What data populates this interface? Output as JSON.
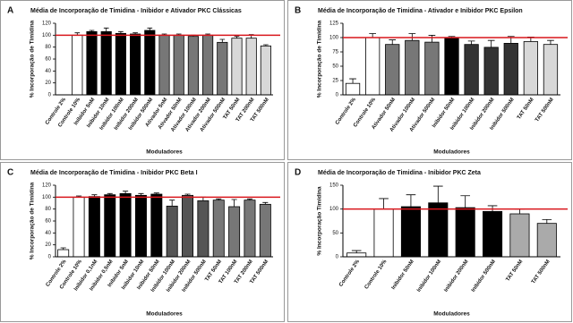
{
  "chart_data": [
    {
      "type": "bar",
      "label": "A",
      "title": "Média de Incorporação de Timidina - Inibidor e Ativador PKC Clássicas",
      "y_label": "% Incorporação de Timidina",
      "x_label": "Moduladores",
      "categories": [
        "Controle 2%",
        "Controle 10%",
        "Inibidor 5nM",
        "Inibidor 10nM",
        "Inibidor 100nM",
        "Inibidor 200nM",
        "Inibidor 500nM",
        "Ativador 5nM",
        "Ativador 50nM",
        "Ativador 100nM",
        "Ativador 200nM",
        "Ativador 500nM",
        "TAT 50nM",
        "TAT 200nM",
        "TAT 500nM"
      ],
      "values": [
        0,
        100,
        106,
        106,
        103,
        102,
        108,
        100,
        100,
        98,
        100,
        88,
        95,
        95,
        82
      ],
      "errors": [
        0,
        4,
        2,
        6,
        3,
        2,
        4,
        2,
        2,
        2,
        2,
        5,
        3,
        6,
        2
      ],
      "colors": [
        "#ffffff",
        "#ffffff",
        "#000000",
        "#000000",
        "#000000",
        "#000000",
        "#000000",
        "#777777",
        "#777777",
        "#777777",
        "#777777",
        "#777777",
        "#d8d8d8",
        "#d8d8d8",
        "#d8d8d8"
      ],
      "ylim": [
        0,
        120
      ],
      "yticks": [
        0,
        20,
        40,
        60,
        80,
        100,
        120
      ],
      "reference_line": 100,
      "reference_color": "#d9161c"
    },
    {
      "type": "bar",
      "label": "B",
      "title": "Média de Incorporação de Timidina - Ativador e Inibidor PKC Epsilon",
      "y_label": "% Incorporação de Timidina",
      "x_label": "Moduladores",
      "categories": [
        "Controle 2%",
        "Controle 10%",
        "Ativador 50nM",
        "Ativador 100nM",
        "Ativador 500nM",
        "Inibidor 50nM",
        "Inibidor 100nM",
        "Inibidor 200nM",
        "Inibidor 500nM",
        "TAT 50nM",
        "TAT 500nM"
      ],
      "values": [
        20,
        100,
        88,
        95,
        92,
        99,
        88,
        83,
        90,
        93,
        88
      ],
      "errors": [
        8,
        7,
        8,
        12,
        12,
        3,
        6,
        12,
        12,
        8,
        7
      ],
      "colors": [
        "#ffffff",
        "#ffffff",
        "#777777",
        "#777777",
        "#777777",
        "#000000",
        "#333333",
        "#333333",
        "#333333",
        "#d8d8d8",
        "#d8d8d8"
      ],
      "ylim": [
        0,
        125
      ],
      "yticks": [
        0,
        25,
        50,
        75,
        100,
        125
      ],
      "reference_line": 100,
      "reference_color": "#d9161c"
    },
    {
      "type": "bar",
      "label": "C",
      "title": "Média de Incorporação de Timidina - Inibidor PKC Beta I",
      "y_label": "% Incorporação de Timidina",
      "x_label": "Moduladores",
      "categories": [
        "Controle 2%",
        "Controle 10%",
        "Inibidor 0,1nM",
        "Inibidor 0,5nM",
        "Inibidor 5nM",
        "Inibidor 10nM",
        "Inibidor 50nM",
        "Inibidor 100nM",
        "Inibidor 200nM",
        "Inibidor 500nM",
        "TAT 50nM",
        "TAT 100nM",
        "TAT 200nM",
        "TAT 500nM"
      ],
      "values": [
        12,
        100,
        101,
        104,
        106,
        103,
        105,
        85,
        103,
        94,
        95,
        84,
        95,
        88
      ],
      "errors": [
        3,
        2,
        3,
        2,
        4,
        3,
        2,
        10,
        2,
        6,
        2,
        12,
        2,
        3
      ],
      "colors": [
        "#ffffff",
        "#ffffff",
        "#000000",
        "#000000",
        "#000000",
        "#000000",
        "#000000",
        "#555555",
        "#555555",
        "#555555",
        "#777777",
        "#777777",
        "#777777",
        "#777777"
      ],
      "ylim": [
        0,
        120
      ],
      "yticks": [
        0,
        20,
        40,
        60,
        80,
        100,
        120
      ],
      "reference_line": 100,
      "reference_color": "#d9161c"
    },
    {
      "type": "bar",
      "label": "D",
      "title": "Média de Incorporação de Timidina - Inibidor PKC Zeta",
      "y_label": "% Incorporação Timidina",
      "x_label": "Moduladores",
      "categories": [
        "Controle 2%",
        "Controle 10%",
        "Inibidor 50nM",
        "Inibidor 100nM",
        "Inibidor 200nM",
        "Inibidor 500nM",
        "TAT 50nM",
        "TAT 500nM"
      ],
      "values": [
        8,
        100,
        105,
        113,
        103,
        95,
        90,
        70
      ],
      "errors": [
        5,
        22,
        25,
        35,
        25,
        12,
        10,
        8
      ],
      "colors": [
        "#ffffff",
        "#ffffff",
        "#000000",
        "#000000",
        "#000000",
        "#000000",
        "#aaaaaa",
        "#aaaaaa"
      ],
      "ylim": [
        0,
        150
      ],
      "yticks": [
        0,
        50,
        100,
        150
      ],
      "reference_line": 100,
      "reference_color": "#d9161c"
    }
  ]
}
